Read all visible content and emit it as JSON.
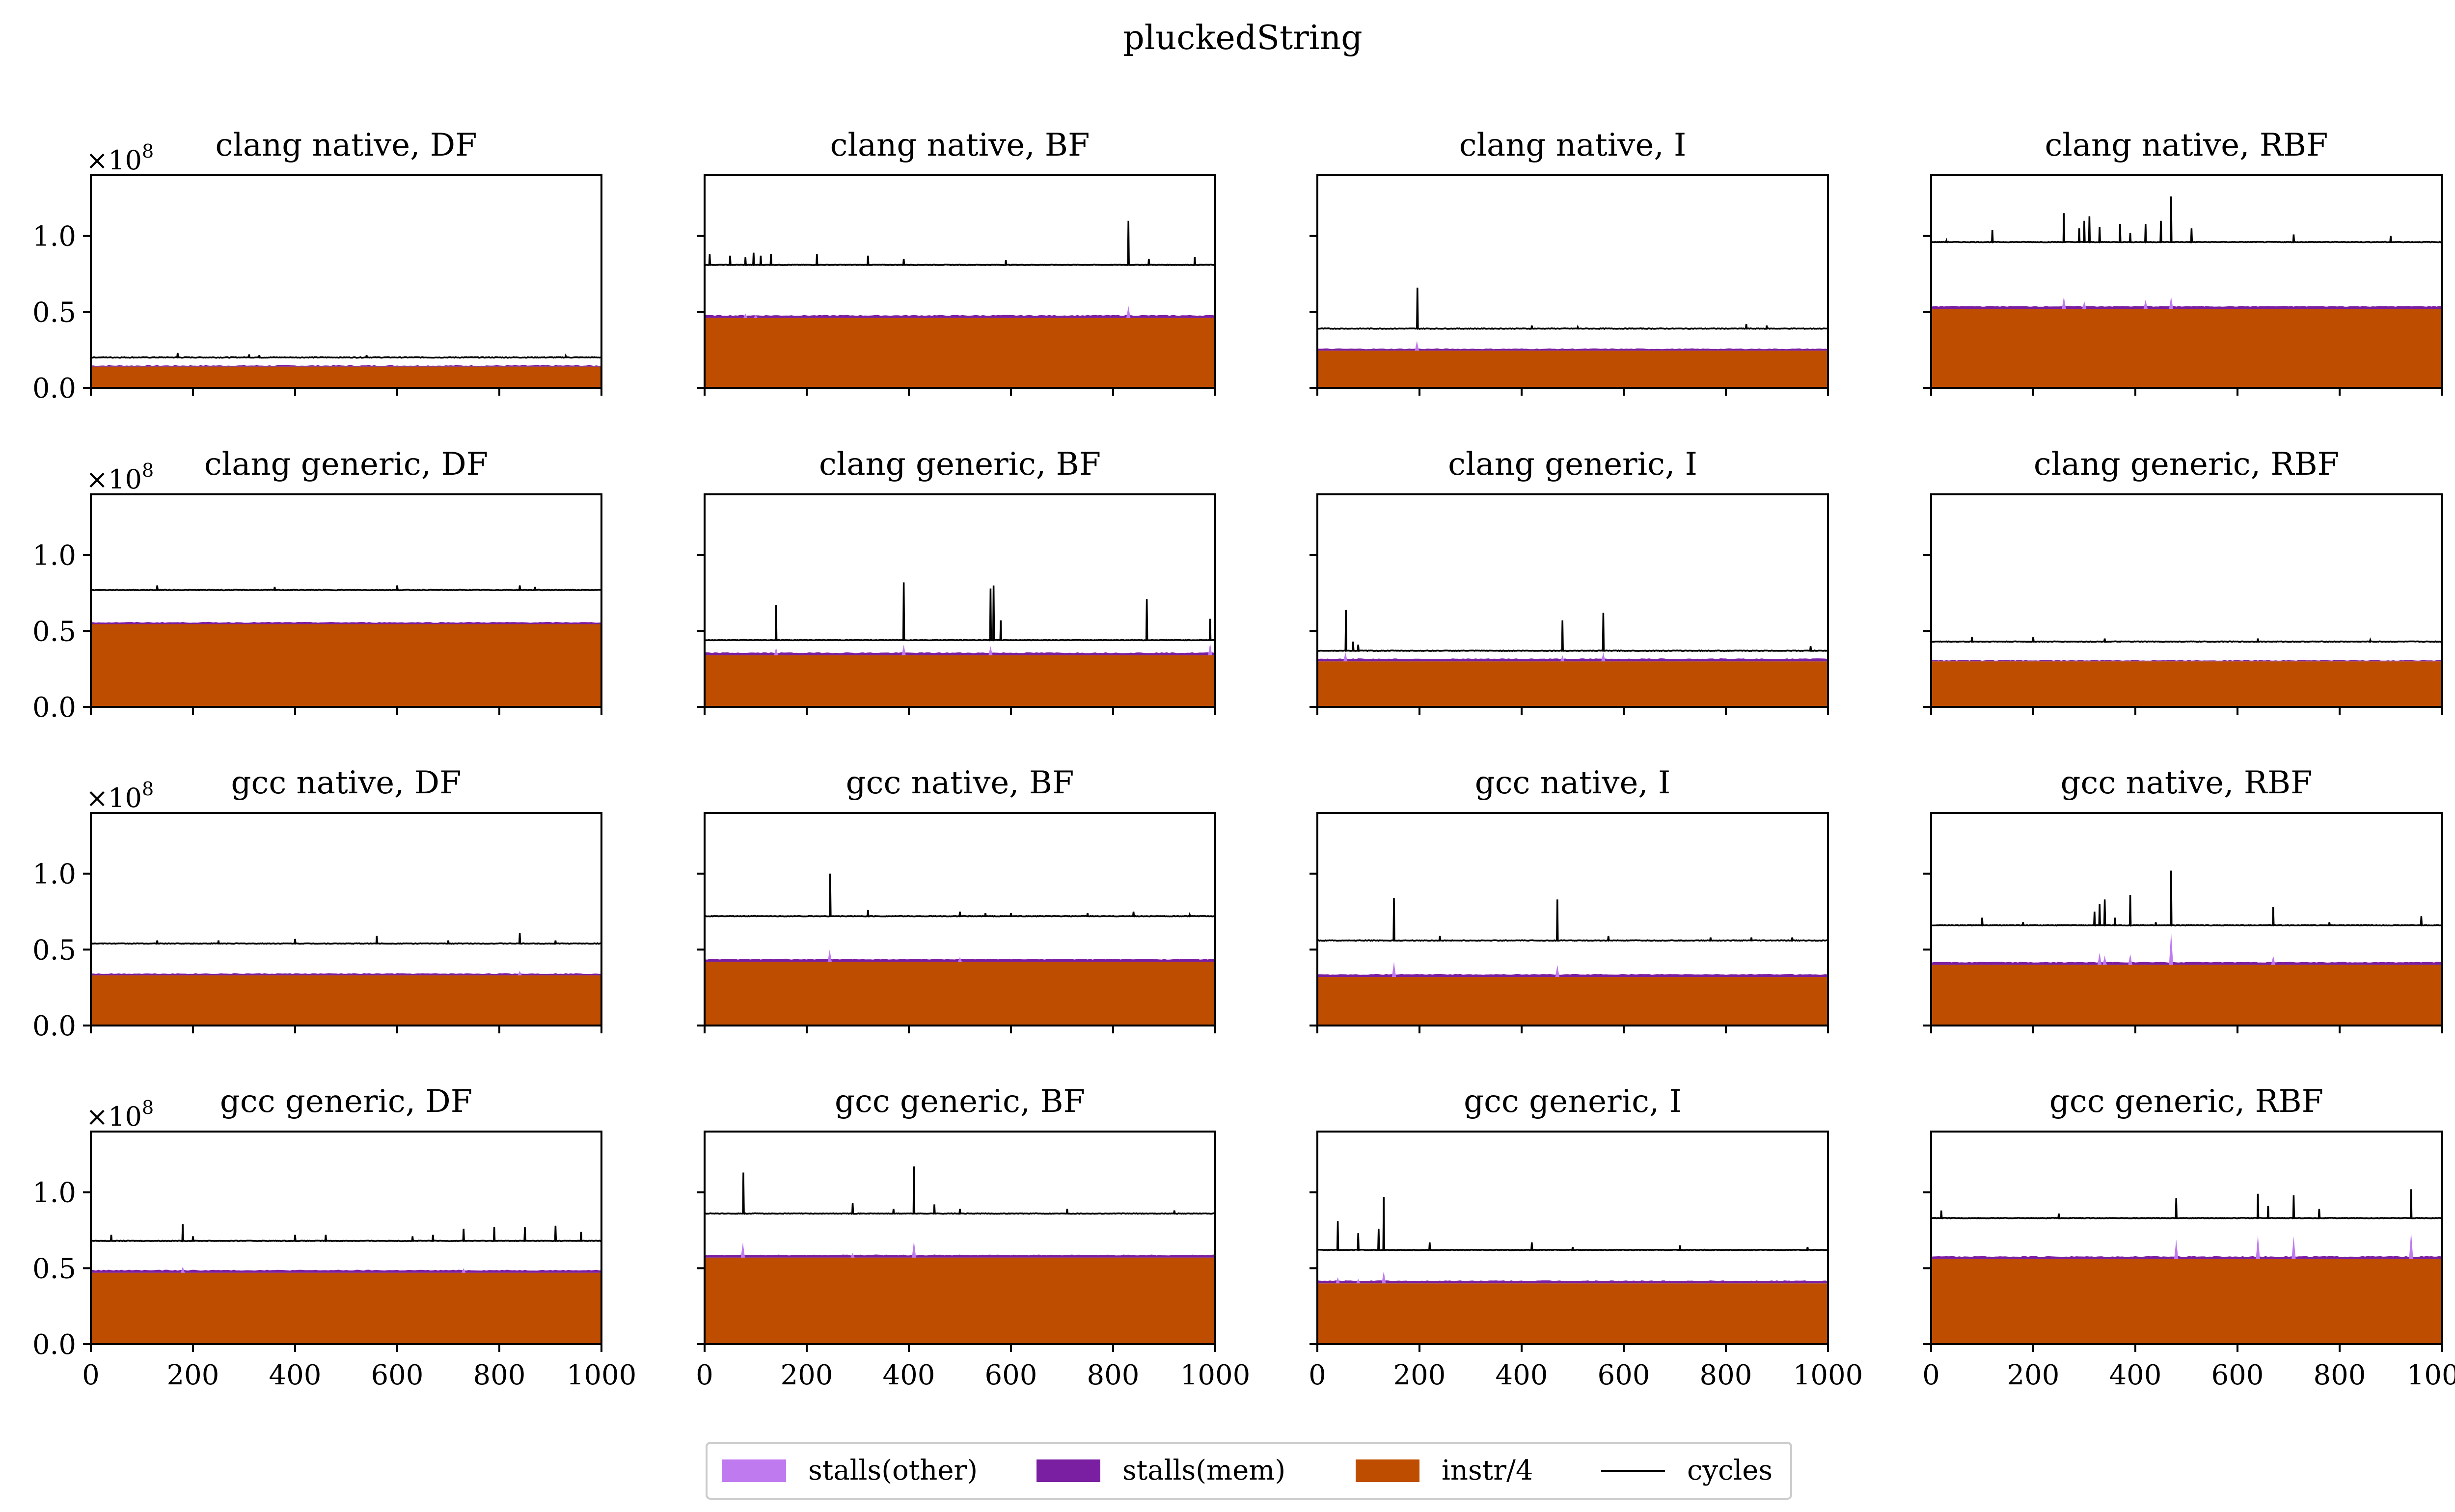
{
  "figure": {
    "suptitle": "pluckedString",
    "y_multiplier": "×10",
    "y_exponent": "8",
    "legend": [
      {
        "label": "stalls(other)",
        "color": "#bf7af0",
        "kind": "patch"
      },
      {
        "label": "stalls(mem)",
        "color": "#7b1fa2",
        "kind": "patch"
      },
      {
        "label": "instr/4",
        "color": "#bf4d00",
        "kind": "patch"
      },
      {
        "label": "cycles",
        "color": "#000000",
        "kind": "line"
      }
    ],
    "colors": {
      "instr": "#bf4d00",
      "mem": "#7b1fa2",
      "other": "#bf7af0",
      "cycles": "#000000"
    }
  },
  "chart_data": [
    {
      "type": "area",
      "title": "clang native, DF",
      "xlim": [
        0,
        1000
      ],
      "ylim": [
        0,
        1.4
      ],
      "yscale": "1e8",
      "xticks": [
        0,
        200,
        400,
        600,
        800,
        1000
      ],
      "yticks": [
        0.0,
        0.5,
        1.0
      ],
      "series": {
        "instr_div4": 0.14,
        "stalls_mem": 0.0,
        "stalls_other": 0.0,
        "cycles": 0.2
      },
      "cycle_spikes": [
        [
          170,
          0.23
        ],
        [
          310,
          0.22
        ],
        [
          330,
          0.215
        ],
        [
          540,
          0.215
        ],
        [
          930,
          0.21
        ]
      ],
      "stall_spikes": []
    },
    {
      "type": "area",
      "title": "clang native, BF",
      "xlim": [
        0,
        1000
      ],
      "ylim": [
        0,
        1.4
      ],
      "yscale": "1e8",
      "xticks": [
        0,
        200,
        400,
        600,
        800,
        1000
      ],
      "yticks": [
        0.0,
        0.5,
        1.0
      ],
      "series": {
        "instr_div4": 0.46,
        "stalls_mem": 0.01,
        "stalls_other": 0.0,
        "cycles": 0.81
      },
      "cycle_spikes": [
        [
          10,
          0.88
        ],
        [
          50,
          0.87
        ],
        [
          80,
          0.86
        ],
        [
          95,
          0.89
        ],
        [
          110,
          0.87
        ],
        [
          130,
          0.88
        ],
        [
          220,
          0.88
        ],
        [
          320,
          0.87
        ],
        [
          390,
          0.85
        ],
        [
          590,
          0.84
        ],
        [
          830,
          1.1
        ],
        [
          870,
          0.85
        ],
        [
          960,
          0.86
        ]
      ],
      "stall_spikes": [
        [
          80,
          0.49
        ],
        [
          100,
          0.48
        ],
        [
          830,
          0.54
        ]
      ]
    },
    {
      "type": "area",
      "title": "clang native, I",
      "xlim": [
        0,
        1000
      ],
      "ylim": [
        0,
        1.4
      ],
      "yscale": "1e8",
      "xticks": [
        0,
        200,
        400,
        600,
        800,
        1000
      ],
      "yticks": [
        0.0,
        0.5,
        1.0
      ],
      "series": {
        "instr_div4": 0.245,
        "stalls_mem": 0.005,
        "stalls_other": 0.0,
        "cycles": 0.39
      },
      "cycle_spikes": [
        [
          195,
          0.66
        ],
        [
          420,
          0.41
        ],
        [
          510,
          0.4
        ],
        [
          840,
          0.42
        ],
        [
          880,
          0.41
        ]
      ],
      "stall_spikes": [
        [
          195,
          0.31
        ]
      ]
    },
    {
      "type": "area",
      "title": "clang native, RBF",
      "xlim": [
        0,
        1000
      ],
      "ylim": [
        0,
        1.4
      ],
      "yscale": "1e8",
      "xticks": [
        0,
        200,
        400,
        600,
        800,
        1000
      ],
      "yticks": [
        0.0,
        0.5,
        1.0
      ],
      "series": {
        "instr_div4": 0.52,
        "stalls_mem": 0.01,
        "stalls_other": 0.0,
        "cycles": 0.96
      },
      "cycle_spikes": [
        [
          30,
          0.97
        ],
        [
          120,
          1.04
        ],
        [
          260,
          1.15
        ],
        [
          290,
          1.05
        ],
        [
          300,
          1.1
        ],
        [
          310,
          1.13
        ],
        [
          330,
          1.06
        ],
        [
          370,
          1.08
        ],
        [
          390,
          1.02
        ],
        [
          420,
          1.08
        ],
        [
          450,
          1.1
        ],
        [
          470,
          1.26
        ],
        [
          510,
          1.05
        ],
        [
          710,
          1.01
        ],
        [
          900,
          1.0
        ]
      ],
      "stall_spikes": [
        [
          260,
          0.6
        ],
        [
          300,
          0.57
        ],
        [
          420,
          0.58
        ],
        [
          470,
          0.6
        ]
      ]
    },
    {
      "type": "area",
      "title": "clang generic, DF",
      "xlim": [
        0,
        1000
      ],
      "ylim": [
        0,
        1.4
      ],
      "yscale": "1e8",
      "xticks": [
        0,
        200,
        400,
        600,
        800,
        1000
      ],
      "yticks": [
        0.0,
        0.5,
        1.0
      ],
      "series": {
        "instr_div4": 0.545,
        "stalls_mem": 0.005,
        "stalls_other": 0.0,
        "cycles": 0.77
      },
      "cycle_spikes": [
        [
          130,
          0.8
        ],
        [
          360,
          0.79
        ],
        [
          600,
          0.8
        ],
        [
          840,
          0.8
        ],
        [
          870,
          0.79
        ]
      ],
      "stall_spikes": []
    },
    {
      "type": "area",
      "title": "clang generic, BF",
      "xlim": [
        0,
        1000
      ],
      "ylim": [
        0,
        1.4
      ],
      "yscale": "1e8",
      "xticks": [
        0,
        200,
        400,
        600,
        800,
        1000
      ],
      "yticks": [
        0.0,
        0.5,
        1.0
      ],
      "series": {
        "instr_div4": 0.34,
        "stalls_mem": 0.01,
        "stalls_other": 0.0,
        "cycles": 0.44
      },
      "cycle_spikes": [
        [
          140,
          0.67
        ],
        [
          390,
          0.82
        ],
        [
          560,
          0.78
        ],
        [
          565,
          0.8
        ],
        [
          580,
          0.57
        ],
        [
          865,
          0.71
        ],
        [
          990,
          0.58
        ]
      ],
      "stall_spikes": [
        [
          140,
          0.39
        ],
        [
          390,
          0.41
        ],
        [
          560,
          0.4
        ],
        [
          990,
          0.42
        ]
      ]
    },
    {
      "type": "area",
      "title": "clang generic, I",
      "xlim": [
        0,
        1000
      ],
      "ylim": [
        0,
        1.4
      ],
      "yscale": "1e8",
      "xticks": [
        0,
        200,
        400,
        600,
        800,
        1000
      ],
      "yticks": [
        0.0,
        0.5,
        1.0
      ],
      "series": {
        "instr_div4": 0.3,
        "stalls_mem": 0.01,
        "stalls_other": 0.0,
        "cycles": 0.37
      },
      "cycle_spikes": [
        [
          55,
          0.64
        ],
        [
          70,
          0.43
        ],
        [
          80,
          0.41
        ],
        [
          480,
          0.57
        ],
        [
          560,
          0.62
        ],
        [
          965,
          0.4
        ]
      ],
      "stall_spikes": [
        [
          55,
          0.36
        ],
        [
          480,
          0.34
        ],
        [
          560,
          0.36
        ]
      ]
    },
    {
      "type": "area",
      "title": "clang generic, RBF",
      "xlim": [
        0,
        1000
      ],
      "ylim": [
        0,
        1.4
      ],
      "yscale": "1e8",
      "xticks": [
        0,
        200,
        400,
        600,
        800,
        1000
      ],
      "yticks": [
        0.0,
        0.5,
        1.0
      ],
      "series": {
        "instr_div4": 0.3,
        "stalls_mem": 0.0,
        "stalls_other": 0.0,
        "cycles": 0.43
      },
      "cycle_spikes": [
        [
          80,
          0.46
        ],
        [
          200,
          0.46
        ],
        [
          340,
          0.45
        ],
        [
          640,
          0.45
        ],
        [
          860,
          0.44
        ]
      ],
      "stall_spikes": []
    },
    {
      "type": "area",
      "title": "gcc native, DF",
      "xlim": [
        0,
        1000
      ],
      "ylim": [
        0,
        1.4
      ],
      "yscale": "1e8",
      "xticks": [
        0,
        200,
        400,
        600,
        800,
        1000
      ],
      "yticks": [
        0.0,
        0.5,
        1.0
      ],
      "series": {
        "instr_div4": 0.33,
        "stalls_mem": 0.005,
        "stalls_other": 0.0,
        "cycles": 0.54
      },
      "cycle_spikes": [
        [
          130,
          0.56
        ],
        [
          250,
          0.56
        ],
        [
          400,
          0.57
        ],
        [
          560,
          0.59
        ],
        [
          700,
          0.56
        ],
        [
          840,
          0.61
        ],
        [
          910,
          0.56
        ]
      ],
      "stall_spikes": [
        [
          840,
          0.36
        ]
      ]
    },
    {
      "type": "area",
      "title": "gcc native, BF",
      "xlim": [
        0,
        1000
      ],
      "ylim": [
        0,
        1.4
      ],
      "yscale": "1e8",
      "xticks": [
        0,
        200,
        400,
        600,
        800,
        1000
      ],
      "yticks": [
        0.0,
        0.5,
        1.0
      ],
      "series": {
        "instr_div4": 0.42,
        "stalls_mem": 0.01,
        "stalls_other": 0.0,
        "cycles": 0.72
      },
      "cycle_spikes": [
        [
          245,
          1.0
        ],
        [
          320,
          0.76
        ],
        [
          500,
          0.75
        ],
        [
          550,
          0.74
        ],
        [
          600,
          0.74
        ],
        [
          750,
          0.74
        ],
        [
          840,
          0.75
        ],
        [
          950,
          0.73
        ]
      ],
      "stall_spikes": [
        [
          245,
          0.5
        ],
        [
          500,
          0.45
        ]
      ]
    },
    {
      "type": "area",
      "title": "gcc native, I",
      "xlim": [
        0,
        1000
      ],
      "ylim": [
        0,
        1.4
      ],
      "yscale": "1e8",
      "xticks": [
        0,
        200,
        400,
        600,
        800,
        1000
      ],
      "yticks": [
        0.0,
        0.5,
        1.0
      ],
      "series": {
        "instr_div4": 0.32,
        "stalls_mem": 0.01,
        "stalls_other": 0.0,
        "cycles": 0.56
      },
      "cycle_spikes": [
        [
          150,
          0.84
        ],
        [
          240,
          0.59
        ],
        [
          470,
          0.83
        ],
        [
          570,
          0.59
        ],
        [
          770,
          0.58
        ],
        [
          850,
          0.58
        ],
        [
          930,
          0.58
        ]
      ],
      "stall_spikes": [
        [
          150,
          0.42
        ],
        [
          470,
          0.4
        ]
      ]
    },
    {
      "type": "area",
      "title": "gcc native, RBF",
      "xlim": [
        0,
        1000
      ],
      "ylim": [
        0,
        1.4
      ],
      "yscale": "1e8",
      "xticks": [
        0,
        200,
        400,
        600,
        800,
        1000
      ],
      "yticks": [
        0.0,
        0.5,
        1.0
      ],
      "series": {
        "instr_div4": 0.4,
        "stalls_mem": 0.01,
        "stalls_other": 0.0,
        "cycles": 0.66
      },
      "cycle_spikes": [
        [
          100,
          0.71
        ],
        [
          180,
          0.68
        ],
        [
          320,
          0.75
        ],
        [
          330,
          0.8
        ],
        [
          340,
          0.83
        ],
        [
          360,
          0.71
        ],
        [
          390,
          0.86
        ],
        [
          440,
          0.68
        ],
        [
          470,
          1.02
        ],
        [
          670,
          0.78
        ],
        [
          780,
          0.68
        ],
        [
          960,
          0.72
        ]
      ],
      "stall_spikes": [
        [
          330,
          0.48
        ],
        [
          340,
          0.46
        ],
        [
          390,
          0.47
        ],
        [
          470,
          0.62
        ],
        [
          670,
          0.46
        ]
      ]
    },
    {
      "type": "area",
      "title": "gcc generic, DF",
      "xlim": [
        0,
        1000
      ],
      "ylim": [
        0,
        1.4
      ],
      "yscale": "1e8",
      "xticks": [
        0,
        200,
        400,
        600,
        800,
        1000
      ],
      "yticks": [
        0.0,
        0.5,
        1.0
      ],
      "series": {
        "instr_div4": 0.47,
        "stalls_mem": 0.01,
        "stalls_other": 0.0,
        "cycles": 0.68
      },
      "cycle_spikes": [
        [
          40,
          0.72
        ],
        [
          180,
          0.79
        ],
        [
          200,
          0.71
        ],
        [
          400,
          0.72
        ],
        [
          460,
          0.72
        ],
        [
          630,
          0.71
        ],
        [
          670,
          0.72
        ],
        [
          730,
          0.76
        ],
        [
          790,
          0.77
        ],
        [
          850,
          0.77
        ],
        [
          910,
          0.78
        ],
        [
          960,
          0.74
        ]
      ],
      "stall_spikes": [
        [
          180,
          0.51
        ],
        [
          730,
          0.5
        ]
      ]
    },
    {
      "type": "area",
      "title": "gcc generic, BF",
      "xlim": [
        0,
        1000
      ],
      "ylim": [
        0,
        1.4
      ],
      "yscale": "1e8",
      "xticks": [
        0,
        200,
        400,
        600,
        800,
        1000
      ],
      "yticks": [
        0.0,
        0.5,
        1.0
      ],
      "series": {
        "instr_div4": 0.57,
        "stalls_mem": 0.01,
        "stalls_other": 0.0,
        "cycles": 0.86
      },
      "cycle_spikes": [
        [
          75,
          1.13
        ],
        [
          290,
          0.93
        ],
        [
          370,
          0.89
        ],
        [
          410,
          1.17
        ],
        [
          450,
          0.92
        ],
        [
          500,
          0.89
        ],
        [
          710,
          0.89
        ],
        [
          920,
          0.88
        ]
      ],
      "stall_spikes": [
        [
          75,
          0.67
        ],
        [
          410,
          0.68
        ],
        [
          290,
          0.6
        ]
      ]
    },
    {
      "type": "area",
      "title": "gcc generic, I",
      "xlim": [
        0,
        1000
      ],
      "ylim": [
        0,
        1.4
      ],
      "yscale": "1e8",
      "xticks": [
        0,
        200,
        400,
        600,
        800,
        1000
      ],
      "yticks": [
        0.0,
        0.5,
        1.0
      ],
      "series": {
        "instr_div4": 0.4,
        "stalls_mem": 0.01,
        "stalls_other": 0.0,
        "cycles": 0.62
      },
      "cycle_spikes": [
        [
          40,
          0.81
        ],
        [
          80,
          0.73
        ],
        [
          120,
          0.76
        ],
        [
          130,
          0.97
        ],
        [
          220,
          0.67
        ],
        [
          420,
          0.67
        ],
        [
          500,
          0.64
        ],
        [
          710,
          0.65
        ],
        [
          960,
          0.64
        ]
      ],
      "stall_spikes": [
        [
          40,
          0.44
        ],
        [
          130,
          0.48
        ],
        [
          80,
          0.43
        ]
      ]
    },
    {
      "type": "area",
      "title": "gcc generic, RBF",
      "xlim": [
        0,
        1000
      ],
      "ylim": [
        0,
        1.4
      ],
      "yscale": "1e8",
      "xticks": [
        0,
        200,
        400,
        600,
        800,
        1000
      ],
      "yticks": [
        0.0,
        0.5,
        1.0
      ],
      "series": {
        "instr_div4": 0.56,
        "stalls_mem": 0.01,
        "stalls_other": 0.02,
        "cycles": 0.83
      },
      "cycle_spikes": [
        [
          20,
          0.88
        ],
        [
          250,
          0.86
        ],
        [
          480,
          0.96
        ],
        [
          640,
          0.99
        ],
        [
          660,
          0.91
        ],
        [
          710,
          0.98
        ],
        [
          760,
          0.89
        ],
        [
          940,
          1.02
        ]
      ],
      "stall_spikes": [
        [
          480,
          0.69
        ],
        [
          640,
          0.72
        ],
        [
          710,
          0.71
        ],
        [
          940,
          0.74
        ]
      ]
    }
  ]
}
